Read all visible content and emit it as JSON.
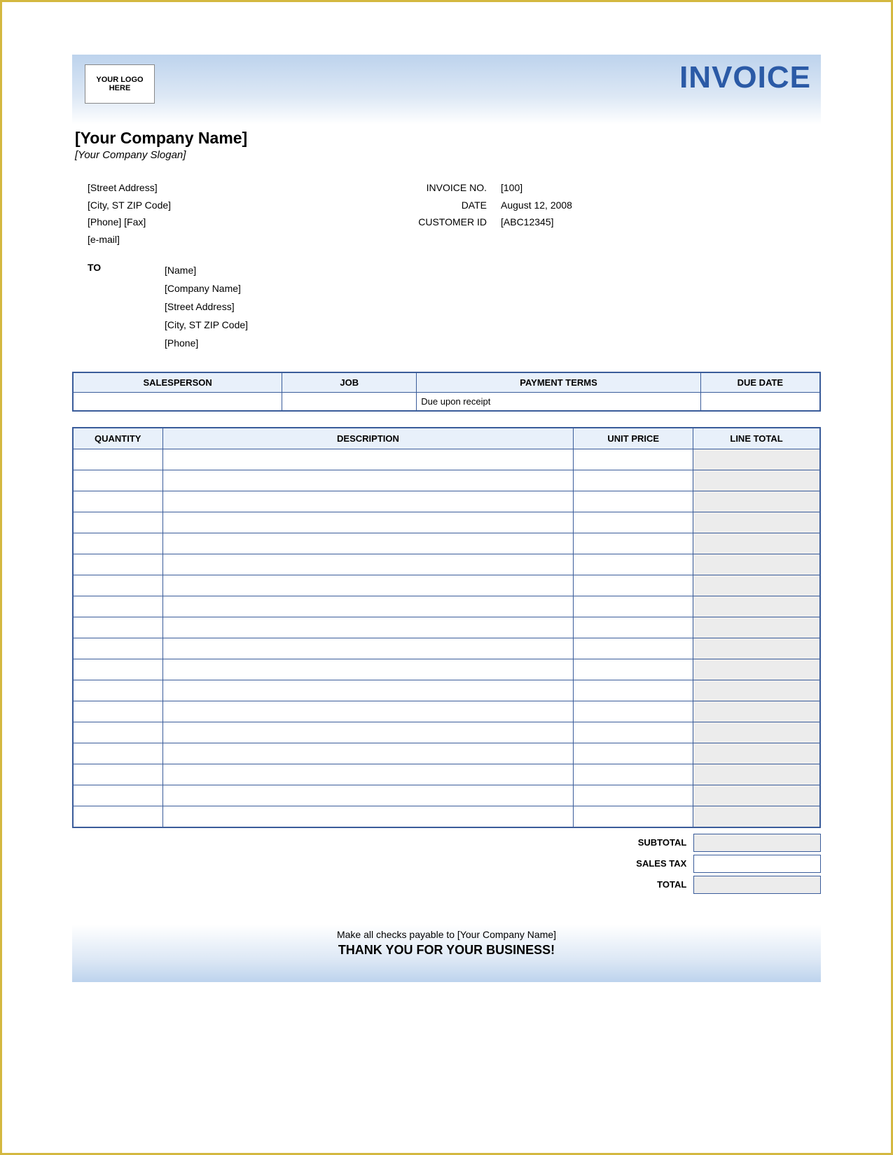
{
  "header": {
    "logo_text": "YOUR LOGO HERE",
    "title": "INVOICE"
  },
  "company": {
    "name": "[Your Company Name]",
    "slogan": "[Your Company Slogan]",
    "street": "[Street Address]",
    "city_st_zip": "[City, ST  ZIP Code]",
    "phone_fax": "[Phone] [Fax]",
    "email": "[e-mail]"
  },
  "meta": {
    "invoice_no_label": "INVOICE NO.",
    "invoice_no": "[100]",
    "date_label": "DATE",
    "date": "August 12, 2008",
    "customer_id_label": "CUSTOMER ID",
    "customer_id": "[ABC12345]"
  },
  "to": {
    "label": "TO",
    "name": "[Name]",
    "company": "[Company Name]",
    "street": "[Street Address]",
    "city_st_zip": "[City, ST  ZIP Code]",
    "phone": "[Phone]"
  },
  "terms_table": {
    "headers": {
      "salesperson": "SALESPERSON",
      "job": "JOB",
      "payment_terms": "PAYMENT TERMS",
      "due_date": "DUE DATE"
    },
    "row": {
      "salesperson": "",
      "job": "",
      "payment_terms": "Due upon receipt",
      "due_date": ""
    }
  },
  "items_table": {
    "headers": {
      "quantity": "QUANTITY",
      "description": "DESCRIPTION",
      "unit_price": "UNIT PRICE",
      "line_total": "LINE TOTAL"
    },
    "row_count": 18
  },
  "totals": {
    "subtotal_label": "SUBTOTAL",
    "sales_tax_label": "SALES TAX",
    "total_label": "TOTAL",
    "subtotal": "",
    "sales_tax": "",
    "total": ""
  },
  "footer": {
    "payable": "Make all checks payable to [Your Company Name]",
    "thanks": "THANK YOU FOR YOUR BUSINESS!"
  },
  "colors": {
    "border": "#3a5c9a",
    "header_bg": "#e8f0fa",
    "shaded": "#ececec",
    "title": "#2b5aa6",
    "page_border": "#d4b840"
  }
}
